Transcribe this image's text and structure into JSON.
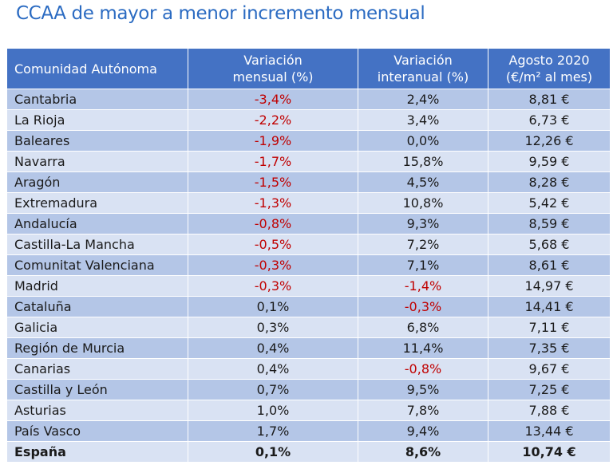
{
  "title": "CCAA de mayor a menor incremento mensual",
  "headers": {
    "region": "Comunidad Autónoma",
    "monthly_l1": "Variación",
    "monthly_l2": "mensual (%)",
    "yearly_l1": "Variación",
    "yearly_l2": "interanual (%)",
    "price_l1": "Agosto 2020",
    "price_l2": "(€/m² al mes)"
  },
  "negative_color": "#c00000",
  "header_color": "#4472c4",
  "rows": [
    {
      "name": "Cantabria",
      "monthly": "-3,4%",
      "yearly": "2,4%",
      "price": "8,81 €"
    },
    {
      "name": "La Rioja",
      "monthly": "-2,2%",
      "yearly": "3,4%",
      "price": "6,73 €"
    },
    {
      "name": "Baleares",
      "monthly": "-1,9%",
      "yearly": "0,0%",
      "price": "12,26 €"
    },
    {
      "name": "Navarra",
      "monthly": "-1,7%",
      "yearly": "15,8%",
      "price": "9,59 €"
    },
    {
      "name": "Aragón",
      "monthly": "-1,5%",
      "yearly": "4,5%",
      "price": "8,28 €"
    },
    {
      "name": "Extremadura",
      "monthly": "-1,3%",
      "yearly": "10,8%",
      "price": "5,42 €"
    },
    {
      "name": "Andalucía",
      "monthly": "-0,8%",
      "yearly": "9,3%",
      "price": "8,59 €"
    },
    {
      "name": "Castilla-La Mancha",
      "monthly": "-0,5%",
      "yearly": "7,2%",
      "price": "5,68 €"
    },
    {
      "name": "Comunitat Valenciana",
      "monthly": "-0,3%",
      "yearly": "7,1%",
      "price": "8,61 €"
    },
    {
      "name": "Madrid",
      "monthly": "-0,3%",
      "yearly": "-1,4%",
      "price": "14,97 €"
    },
    {
      "name": "Cataluña",
      "monthly": "0,1%",
      "yearly": "-0,3%",
      "price": "14,41 €"
    },
    {
      "name": "Galicia",
      "monthly": "0,3%",
      "yearly": "6,8%",
      "price": "7,11 €"
    },
    {
      "name": "Región de Murcia",
      "monthly": "0,4%",
      "yearly": "11,4%",
      "price": "7,35 €"
    },
    {
      "name": "Canarias",
      "monthly": "0,4%",
      "yearly": "-0,8%",
      "price": "9,67 €"
    },
    {
      "name": "Castilla y León",
      "monthly": "0,7%",
      "yearly": "9,5%",
      "price": "7,25 €"
    },
    {
      "name": "Asturias",
      "monthly": "1,0%",
      "yearly": "7,8%",
      "price": "7,88 €"
    },
    {
      "name": "País Vasco",
      "monthly": "1,7%",
      "yearly": "9,4%",
      "price": "13,44 €"
    }
  ],
  "total": {
    "name": "España",
    "monthly": "0,1%",
    "yearly": "8,6%",
    "price": "10,74 €"
  }
}
